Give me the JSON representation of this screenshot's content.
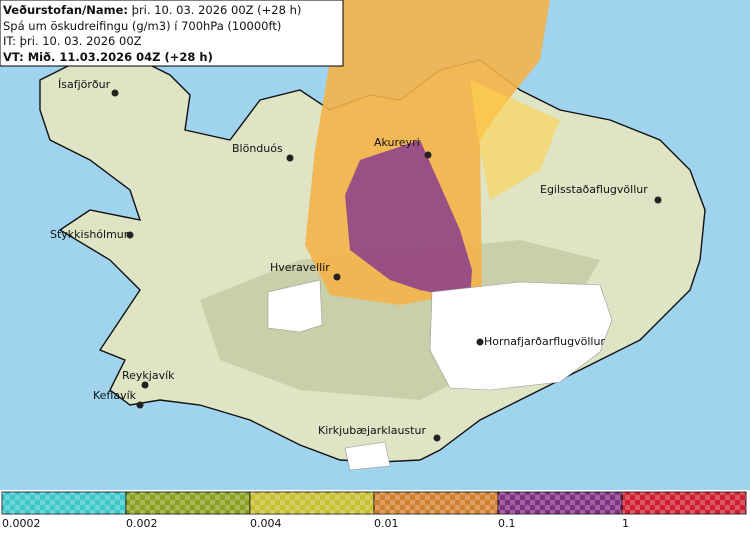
{
  "header": {
    "title_label": "Veðurstofan/Name:",
    "title_value": "þri. 10. 03. 2026 00Z (+28 h)",
    "description": "Spá um öskudreifingu (g/m3) í 700hPa (10000ft)",
    "initial_time": "IT: þri. 10. 03. 2026 00Z",
    "valid_time": "VT: Mið. 11.03.2026 04Z (+28 h)"
  },
  "places": [
    "Ísafjörður",
    "Blönduós",
    "Akureyri",
    "Egilsstaðaflugvöllur",
    "Stykkishólmur",
    "Hveravellir",
    "Hornafjarðarflugvöllur",
    "Reykjavík",
    "Keflavík",
    "Kirkjubæjarklaustur"
  ],
  "legend": {
    "labels": [
      "0.0002",
      "0.002",
      "0.004",
      "0.01",
      "0.1",
      "1"
    ]
  }
}
